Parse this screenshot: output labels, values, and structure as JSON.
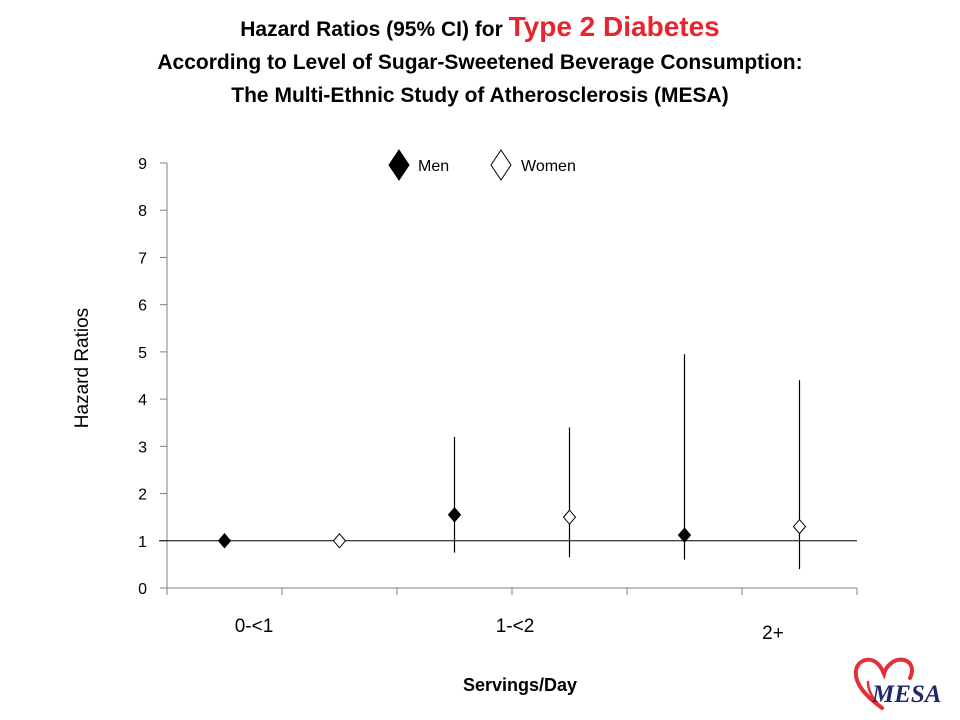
{
  "header": {
    "title_prefix": "Hazard Ratios (95% CI) for ",
    "title_highlight": "Type 2 Diabetes",
    "title_line2": "According to Level of Sugar-Sweetened Beverage Consumption:",
    "title_line3": "The Multi-Ethnic Study of Atherosclerosis (MESA)"
  },
  "logo": {
    "text": "MESA",
    "icon": "heart-logo-icon"
  },
  "colors": {
    "highlight": "#e8242c",
    "logo_heart": "#e0313a",
    "logo_text": "#1f2a6b",
    "marker_men": "#000000",
    "marker_women": "#ffffff"
  },
  "chart_data": {
    "type": "scatter",
    "ylabel": "Hazard Ratios",
    "xlabel": "Servings/Day",
    "ylim": [
      0,
      9
    ],
    "yticks": [
      "0",
      "1",
      "2",
      "3",
      "4",
      "5",
      "6",
      "7",
      "8",
      "9"
    ],
    "categories": [
      "0-<1",
      "1-<2",
      "2+"
    ],
    "reference_line": 1,
    "grid": false,
    "legend_position": "top-center",
    "series": [
      {
        "name": "Men",
        "marker": "filled-diamond",
        "values": [
          1.0,
          1.55,
          1.12
        ],
        "ci_lower": [
          null,
          0.75,
          0.6
        ],
        "ci_upper": [
          null,
          3.2,
          4.95
        ]
      },
      {
        "name": "Women",
        "marker": "open-diamond",
        "values": [
          1.0,
          1.5,
          1.3
        ],
        "ci_lower": [
          null,
          0.65,
          0.4
        ],
        "ci_upper": [
          null,
          3.4,
          4.4
        ]
      }
    ]
  }
}
